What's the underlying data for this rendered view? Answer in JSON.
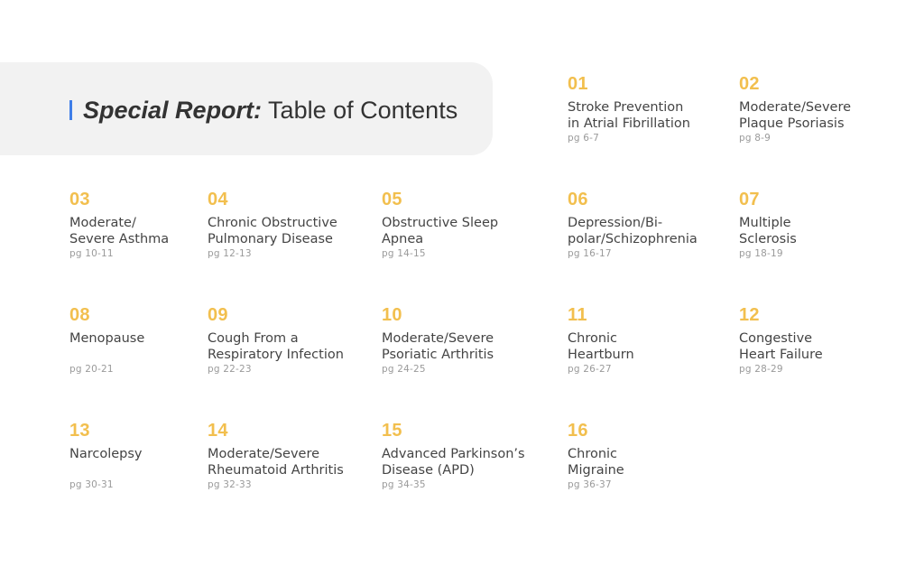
{
  "header": {
    "title_emphasis": "Special Report:",
    "title_rest": " Table of Contents",
    "accent_color": "#3f7ee8"
  },
  "theme": {
    "number_color": "#f2bf4e",
    "panel_color": "#f2f2f2"
  },
  "toc": [
    {
      "num": "01",
      "title": "Stroke Prevention\nin Atrial Fibrillation",
      "pages": "pg 6-7"
    },
    {
      "num": "02",
      "title": "Moderate/Severe\nPlaque Psoriasis",
      "pages": "pg 8-9"
    },
    {
      "num": "03",
      "title": "Moderate/\nSevere Asthma",
      "pages": "pg 10-11"
    },
    {
      "num": "04",
      "title": "Chronic Obstructive\nPulmonary Disease",
      "pages": "pg 12-13"
    },
    {
      "num": "05",
      "title": "Obstructive Sleep\nApnea",
      "pages": "pg 14-15"
    },
    {
      "num": "06",
      "title": "Depression/Bi-\npolar/Schizophrenia",
      "pages": "pg 16-17"
    },
    {
      "num": "07",
      "title": "Multiple\nSclerosis",
      "pages": "pg 18-19"
    },
    {
      "num": "08",
      "title": "Menopause",
      "pages": "pg 20-21"
    },
    {
      "num": "09",
      "title": "Cough From a\nRespiratory Infection",
      "pages": "pg 22-23"
    },
    {
      "num": "10",
      "title": "Moderate/Severe\nPsoriatic Arthritis",
      "pages": "pg 24-25"
    },
    {
      "num": "11",
      "title": "Chronic\nHeartburn",
      "pages": "pg 26-27"
    },
    {
      "num": "12",
      "title": "Congestive\nHeart Failure",
      "pages": "pg 28-29"
    },
    {
      "num": "13",
      "title": "Narcolepsy",
      "pages": "pg 30-31"
    },
    {
      "num": "14",
      "title": "Moderate/Severe\nRheumatoid Arthritis",
      "pages": "pg 32-33"
    },
    {
      "num": "15",
      "title": "Advanced Parkinson’s\nDisease (APD)",
      "pages": "pg 34-35"
    },
    {
      "num": "16",
      "title": "Chronic\nMigraine",
      "pages": "pg 36-37"
    }
  ]
}
